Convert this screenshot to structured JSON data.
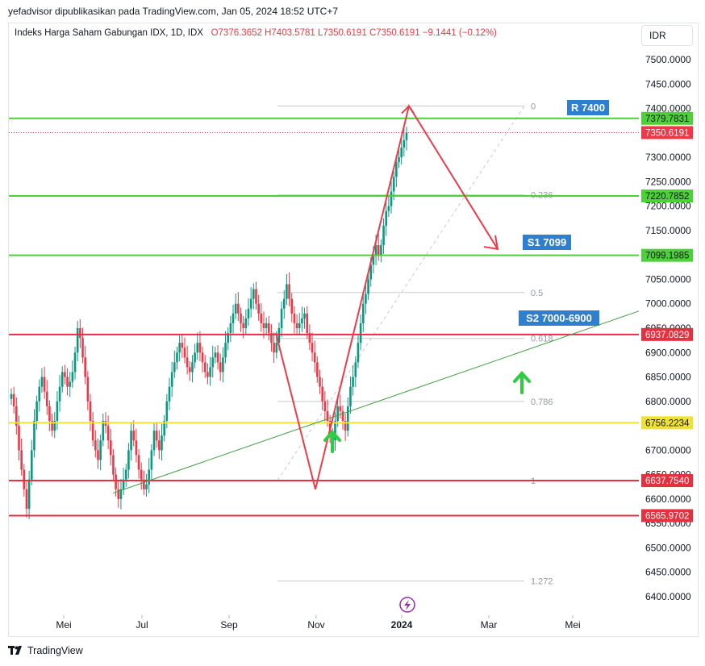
{
  "header": {
    "publish_line": "yefadvisor dipublikasikan pada TradingView.com, Jan 05, 2024 18:52 UTC+7",
    "symbol": "Indeks Harga Saham Gabungan IDX, 1D, IDX",
    "open": "O7376.3652",
    "high": "H7403.5781",
    "low": "L7350.6191",
    "close": "C7350.6191",
    "change": "−9.1441 (−0.12%)",
    "currency": "IDR"
  },
  "footer": {
    "brand": "TradingView"
  },
  "colors": {
    "up": "#089981",
    "down": "#f23645",
    "green_line": "#4cd137",
    "red_line": "#e5303f",
    "yellow_line": "#f0e22f",
    "blue_label": "#2f7fd0",
    "fib": "#c8c9cc",
    "trend": "#43a047"
  },
  "chart_data": {
    "type": "candlestick",
    "y_axis": {
      "range": [
        6370,
        7530
      ],
      "ticks": [
        "7500.0000",
        "7450.0000",
        "7400.0000",
        "7350.0000",
        "7300.0000",
        "7250.0000",
        "7200.0000",
        "7150.0000",
        "7100.0000",
        "7050.0000",
        "7000.0000",
        "6950.0000",
        "6900.0000",
        "6850.0000",
        "6800.0000",
        "6750.0000",
        "6700.0000",
        "6650.0000",
        "6600.0000",
        "6550.0000",
        "6500.0000",
        "6450.0000",
        "6400.0000"
      ]
    },
    "x_axis": {
      "ticks": [
        "Mei",
        "Jul",
        "Sep",
        "Nov",
        "2024",
        "Mar",
        "Mei"
      ]
    },
    "horizontal_levels": [
      {
        "value": 7379.7831,
        "label": "7379.7831",
        "style": "green"
      },
      {
        "value": 7350.6191,
        "label": "7350.6191",
        "style": "price"
      },
      {
        "value": 7220.7852,
        "label": "7220.7852",
        "style": "green"
      },
      {
        "value": 7099.1985,
        "label": "7099.1985",
        "style": "green"
      },
      {
        "value": 6937.0829,
        "label": "6937.0829",
        "style": "red"
      },
      {
        "value": 6756.2234,
        "label": "6756.2234",
        "style": "yellow"
      },
      {
        "value": 6637.754,
        "label": "6637.7540",
        "style": "red"
      },
      {
        "value": 6565.9702,
        "label": "6565.9702",
        "style": "red"
      }
    ],
    "annotations": [
      {
        "text": "R 7400",
        "value": 7400
      },
      {
        "text": "S1 7099",
        "value": 7099
      },
      {
        "text": "S2 7000-6900",
        "value": 6970
      }
    ],
    "fibonacci": [
      {
        "label": "0",
        "value": 7405
      },
      {
        "label": "0.236",
        "value": 7223
      },
      {
        "label": "0.5",
        "value": 7023
      },
      {
        "label": "0.618",
        "value": 6929
      },
      {
        "label": "0.786",
        "value": 6800
      },
      {
        "label": "1",
        "value": 6637.754
      },
      {
        "label": "1.272",
        "value": 6432
      }
    ],
    "series": [
      {
        "name": "IHSG daily close (approx.)",
        "close": [
          6815,
          6790,
          6750,
          6700,
          6660,
          6620,
          6580,
          6640,
          6700,
          6760,
          6800,
          6830,
          6850,
          6820,
          6790,
          6760,
          6740,
          6760,
          6800,
          6830,
          6860,
          6850,
          6830,
          6840,
          6860,
          6900,
          6950,
          6930,
          6890,
          6850,
          6800,
          6760,
          6720,
          6700,
          6680,
          6720,
          6760,
          6750,
          6720,
          6690,
          6650,
          6620,
          6600,
          6620,
          6640,
          6660,
          6700,
          6740,
          6720,
          6690,
          6660,
          6640,
          6620,
          6630,
          6660,
          6700,
          6740,
          6720,
          6700,
          6730,
          6760,
          6800,
          6830,
          6860,
          6880,
          6900,
          6920,
          6910,
          6890,
          6870,
          6860,
          6880,
          6900,
          6920,
          6900,
          6880,
          6860,
          6850,
          6870,
          6890,
          6900,
          6880,
          6860,
          6890,
          6920,
          6940,
          6960,
          6980,
          7000,
          6980,
          6960,
          6950,
          6970,
          6990,
          7010,
          7030,
          7000,
          6980,
          6960,
          6950,
          6960,
          6940,
          6920,
          6900,
          6920,
          6950,
          6990,
          7010,
          7040,
          7010,
          6980,
          6960,
          6950,
          6960,
          6970,
          6980,
          6940,
          6920,
          6900,
          6880,
          6850,
          6830,
          6800,
          6780,
          6760,
          6730,
          6720,
          6760,
          6790,
          6780,
          6760,
          6740,
          6790,
          6830,
          6850,
          6880,
          6920,
          6960,
          7000,
          7020,
          7050,
          7080,
          7100,
          7120,
          7100,
          7120,
          7160,
          7190,
          7200,
          7230,
          7260,
          7290,
          7300,
          7320,
          7335,
          7350.6191
        ]
      }
    ]
  }
}
